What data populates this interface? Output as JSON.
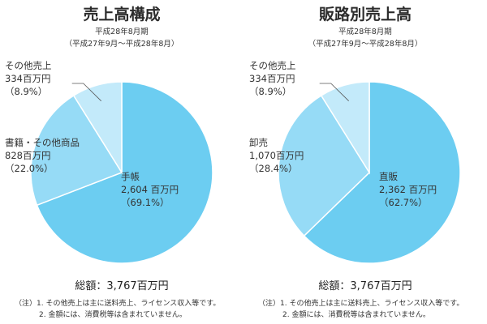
{
  "chart_data": [
    {
      "type": "pie",
      "title": "売上高構成",
      "subtitle_period": "平成28年8月期",
      "subtitle_range": "（平成27年9月〜平成28年8月）",
      "slices": [
        {
          "name": "手帳",
          "value": 2604,
          "value_label": "2,604 百万円",
          "percent": 69.1,
          "percent_label": "（69.1%）",
          "color": "#6ccdf1"
        },
        {
          "name": "書籍・その他商品",
          "value": 828,
          "value_label": "828百万円",
          "percent": 22.0,
          "percent_label": "（22.0%）",
          "color": "#96dbf6"
        },
        {
          "name": "その他売上",
          "value": 334,
          "value_label": "334百万円",
          "percent": 8.9,
          "percent_label": "（8.9%）",
          "color": "#c3eafa"
        }
      ],
      "total_label": "総額：3,767百万円",
      "notes": [
        "（注）1. その他売上は主に送料売上、ライセンス収入等です。",
        "2. 金額には、消費税等は含まれていません。"
      ]
    },
    {
      "type": "pie",
      "title": "販路別売上高",
      "subtitle_period": "平成28年8月期",
      "subtitle_range": "（平成27年9月〜平成28年8月）",
      "slices": [
        {
          "name": "直販",
          "value": 2362,
          "value_label": "2,362 百万円",
          "percent": 62.7,
          "percent_label": "（62.7%）",
          "color": "#6ccdf1"
        },
        {
          "name": "卸売",
          "value": 1070,
          "value_label": "1,070百万円",
          "percent": 28.4,
          "percent_label": "（28.4%）",
          "color": "#96dbf6"
        },
        {
          "name": "その他売上",
          "value": 334,
          "value_label": "334百万円",
          "percent": 8.9,
          "percent_label": "（8.9%）",
          "color": "#c3eafa"
        }
      ],
      "total_label": "総額：3,767百万円",
      "notes": [
        "（注）1. その他売上は主に送料売上、ライセンス収入等です。",
        "2. 金額には、消費税等は含まれていません。"
      ]
    }
  ]
}
